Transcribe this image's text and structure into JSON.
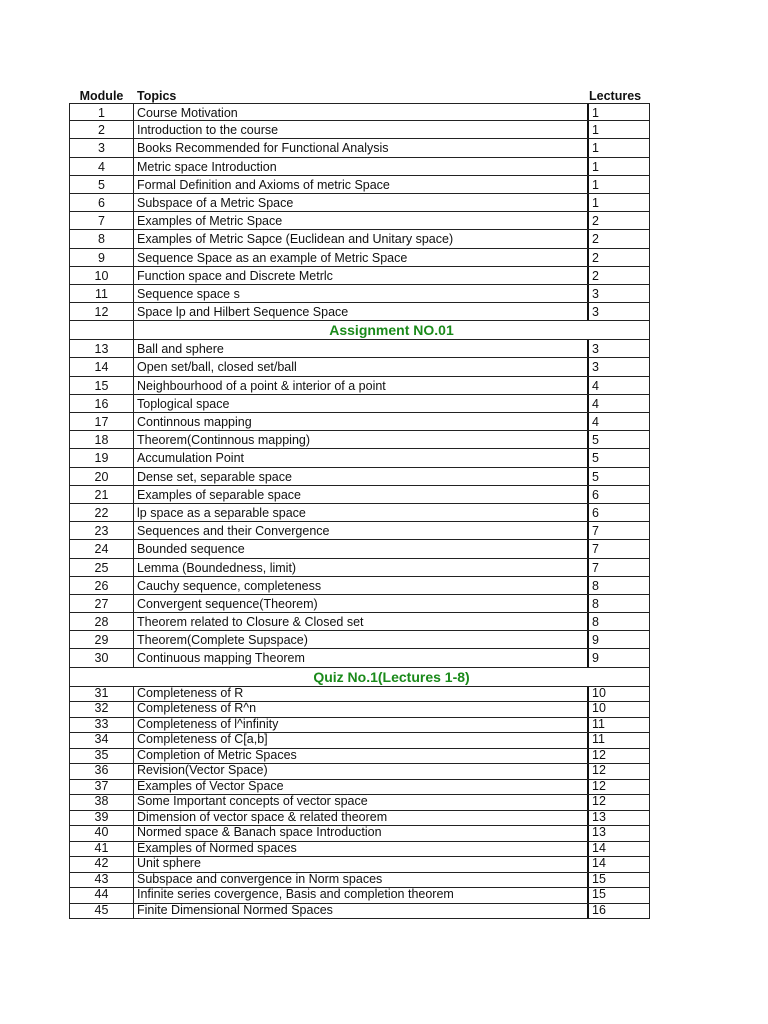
{
  "headers": {
    "module": "Module",
    "topics": "Topics",
    "lectures": "Lectures"
  },
  "section1": [
    [
      "1",
      "Course Motivation",
      "1"
    ],
    [
      "2",
      "Introduction to the course",
      "1"
    ],
    [
      "3",
      "Books Recommended for Functional Analysis",
      "1"
    ],
    [
      "4",
      "Metric space Introduction",
      "1"
    ],
    [
      "5",
      "Formal Definition and Axioms of metric  Space",
      "1"
    ],
    [
      "6",
      "Subspace of a Metric Space",
      "1"
    ],
    [
      "7",
      "Examples of Metric Space",
      "2"
    ],
    [
      "8",
      "Examples of Metric Sapce (Euclidean and Unitary space)",
      "2"
    ],
    [
      "9",
      "Sequence Space as  an example of Metric Space",
      "2"
    ],
    [
      "10",
      "Function space and Discrete Metrlc",
      "2"
    ],
    [
      "11",
      "Sequence space s",
      "3"
    ],
    [
      "12",
      "Space lp and Hilbert Sequence Space",
      "3"
    ]
  ],
  "assignment_label": "Assignment NO.01",
  "section2": [
    [
      "13",
      "Ball and sphere",
      "3"
    ],
    [
      "14",
      "Open set/ball, closed set/ball",
      "3"
    ],
    [
      "15",
      "Neighbourhood of a point & interior of a point",
      "4"
    ],
    [
      "16",
      "Toplogical space",
      "4"
    ],
    [
      "17",
      "Continnous mapping",
      "4"
    ],
    [
      "18",
      "Theorem(Continnous mapping)",
      "5"
    ],
    [
      "19",
      "Accumulation Point",
      "5"
    ],
    [
      "20",
      "Dense set, separable space",
      "5"
    ],
    [
      "21",
      "Examples of separable space",
      "6"
    ],
    [
      "22",
      "lp space as a separable space",
      "6"
    ],
    [
      "23",
      "Sequences and their Convergence",
      "7"
    ],
    [
      "24",
      "Bounded sequence",
      "7"
    ],
    [
      "25",
      "Lemma (Boundedness, limit)",
      "7"
    ],
    [
      "26",
      "Cauchy sequence, completeness",
      "8"
    ],
    [
      "27",
      "Convergent sequence(Theorem)",
      "8"
    ],
    [
      "28",
      "Theorem related to Closure & Closed set",
      "8"
    ],
    [
      "29",
      "Theorem(Complete Supspace)",
      "9"
    ],
    [
      "30",
      "Continuous mapping Theorem",
      "9"
    ]
  ],
  "quiz_label": "Quiz No.1(Lectures 1-8)",
  "section3": [
    [
      "31",
      "Completeness of R",
      "10"
    ],
    [
      "32",
      "Completeness of R^n",
      "10"
    ],
    [
      "33",
      "Completeness of l^infinity",
      "11"
    ],
    [
      "34",
      "Completeness of C[a,b]",
      "11"
    ],
    [
      "35",
      "Completion of Metric Spaces",
      "12"
    ],
    [
      "36",
      "Revision(Vector Space)",
      "12"
    ],
    [
      "37",
      "Examples of Vector Space",
      "12"
    ],
    [
      "38",
      "Some Important concepts of vector space",
      "12"
    ],
    [
      "39",
      "Dimension of vector space & related theorem",
      "13"
    ],
    [
      "40",
      "Normed space & Banach space Introduction",
      "13"
    ],
    [
      "41",
      "Examples of Normed spaces",
      "14"
    ],
    [
      "42",
      "Unit sphere",
      "14"
    ],
    [
      "43",
      "Subspace and convergence in Norm spaces",
      "15"
    ],
    [
      "44",
      "Infinite series covergence, Basis and completion theorem",
      "15"
    ],
    [
      "45",
      "Finite Dimensional Normed Spaces",
      "16"
    ]
  ],
  "colors": {
    "band_text": "#1a8a1a"
  }
}
